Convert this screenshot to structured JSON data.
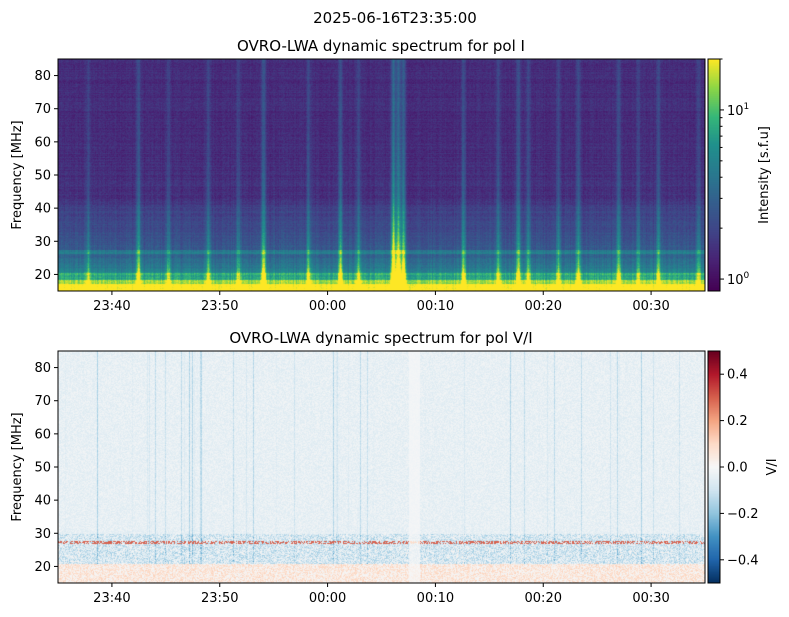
{
  "suptitle": "2025-06-16T23:35:00",
  "chart_data": [
    {
      "type": "heatmap",
      "title": "OVRO-LWA dynamic spectrum for pol I",
      "ylabel": "Frequency [MHz]",
      "xlabel": "",
      "x_ticks": [
        "23:40",
        "23:50",
        "00:00",
        "00:10",
        "00:20",
        "00:30"
      ],
      "x_tick_minutes": [
        5,
        15,
        25,
        35,
        45,
        55
      ],
      "x_range_minutes": [
        0,
        60
      ],
      "y_ticks": [
        20,
        30,
        40,
        50,
        60,
        70,
        80
      ],
      "ylim": [
        15,
        85
      ],
      "colormap": "viridis",
      "colorbar": {
        "label": "Intensity [s.f.u]",
        "scale": "log",
        "range": [
          0.85,
          20
        ],
        "major_ticks": [
          {
            "value": 1,
            "base": "10",
            "exp": "0"
          },
          {
            "value": 10,
            "base": "10",
            "exp": "1"
          }
        ],
        "minor_ticks": [
          2,
          3,
          4,
          5,
          6,
          7,
          8,
          9,
          20
        ]
      }
    },
    {
      "type": "heatmap",
      "title": "OVRO-LWA dynamic spectrum for pol V/I",
      "ylabel": "Frequency [MHz]",
      "xlabel": "",
      "x_ticks": [
        "23:40",
        "23:50",
        "00:00",
        "00:10",
        "00:20",
        "00:30"
      ],
      "x_tick_minutes": [
        5,
        15,
        25,
        35,
        45,
        55
      ],
      "x_range_minutes": [
        0,
        60
      ],
      "y_ticks": [
        20,
        30,
        40,
        50,
        60,
        70,
        80
      ],
      "ylim": [
        15,
        85
      ],
      "colormap": "RdBu_r",
      "colorbar": {
        "label": "V/I",
        "scale": "linear",
        "range": [
          -0.5,
          0.5
        ],
        "ticks": [
          0.4,
          0.2,
          0.0,
          -0.2,
          -0.4
        ],
        "tick_labels": [
          "0.4",
          "0.2",
          "0.0",
          "−0.2",
          "−0.4"
        ]
      }
    }
  ]
}
